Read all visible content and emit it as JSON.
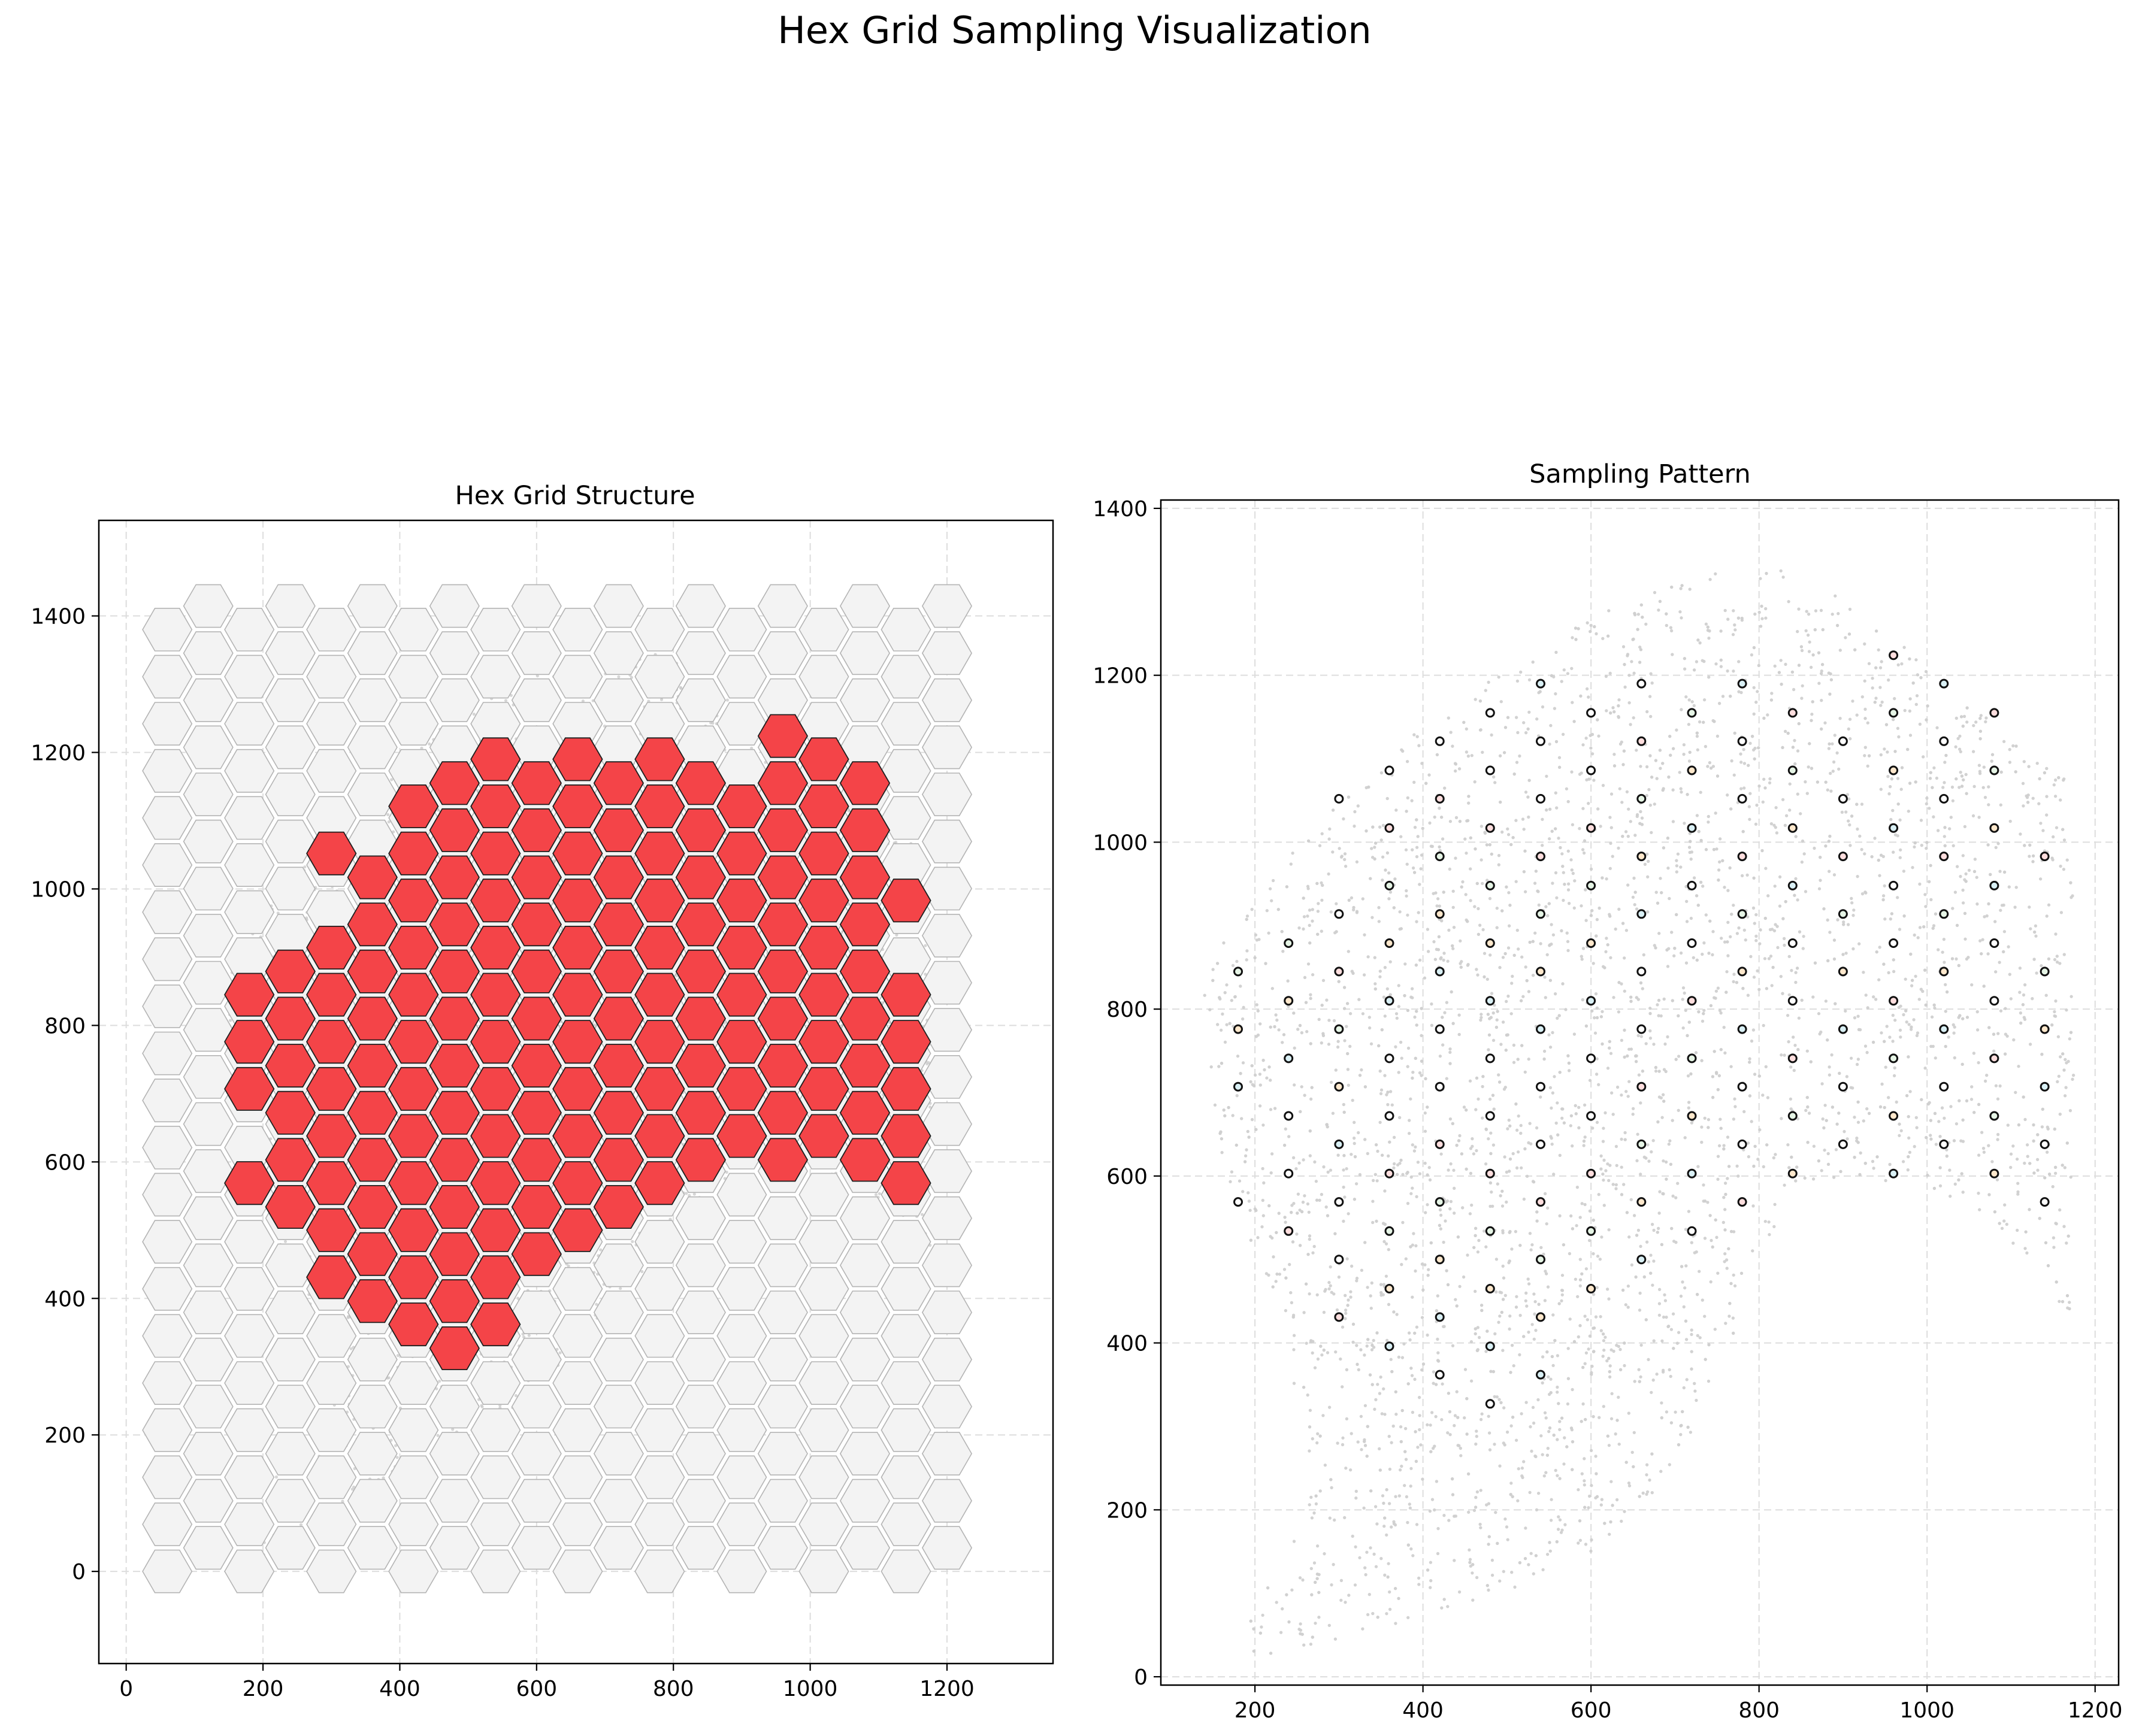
{
  "title": "Hex Grid Sampling Visualization",
  "chart_data": [
    {
      "type": "scatter",
      "title": "Hex Grid Structure",
      "xlabel": "",
      "ylabel": "",
      "xlim": [
        -40,
        1355
      ],
      "ylim": [
        -135,
        1540
      ],
      "xticks": [
        0,
        200,
        400,
        600,
        800,
        1000,
        1200
      ],
      "yticks": [
        0,
        200,
        400,
        600,
        800,
        1000,
        1200,
        1400
      ],
      "grid": true,
      "hex_grid": {
        "x_origin": 60,
        "x_spacing": 60,
        "y_origin": 0,
        "y_spacing": 69,
        "hex_radius": 36,
        "odd_column_offset": 34.5,
        "columns": 20,
        "rows": 21,
        "fill_color": "#f3f3f3",
        "edge_color": "#b4b4b4"
      },
      "selected_hexes": {
        "fill_color": "#f44448",
        "edge_color": "#1e1e1e",
        "columns": [
          {
            "x": 180,
            "y": [
              569,
              707,
              776,
              845
            ]
          },
          {
            "x": 240,
            "y": [
              534,
              603,
              672,
              741,
              810,
              879
            ]
          },
          {
            "x": 300,
            "y": [
              431,
              500,
              569,
              638,
              707,
              776,
              845,
              914,
              1052
            ]
          },
          {
            "x": 360,
            "y": [
              396,
              465,
              534,
              603,
              672,
              741,
              810,
              879,
              948,
              1017
            ]
          },
          {
            "x": 420,
            "y": [
              362,
              431,
              500,
              569,
              638,
              707,
              776,
              845,
              914,
              983,
              1052,
              1121
            ]
          },
          {
            "x": 480,
            "y": [
              327,
              396,
              465,
              534,
              603,
              672,
              741,
              810,
              879,
              948,
              1017,
              1086,
              1155
            ]
          },
          {
            "x": 540,
            "y": [
              362,
              431,
              500,
              569,
              638,
              707,
              776,
              845,
              914,
              983,
              1052,
              1121,
              1190
            ]
          },
          {
            "x": 600,
            "y": [
              465,
              534,
              603,
              672,
              741,
              810,
              879,
              948,
              1017,
              1086,
              1155
            ]
          },
          {
            "x": 660,
            "y": [
              500,
              569,
              638,
              707,
              776,
              845,
              914,
              983,
              1052,
              1121,
              1190
            ]
          },
          {
            "x": 720,
            "y": [
              534,
              603,
              672,
              741,
              810,
              879,
              948,
              1017,
              1086,
              1155
            ]
          },
          {
            "x": 780,
            "y": [
              569,
              638,
              707,
              776,
              845,
              914,
              983,
              1052,
              1121,
              1190
            ]
          },
          {
            "x": 840,
            "y": [
              603,
              672,
              741,
              810,
              879,
              948,
              1017,
              1086,
              1155
            ]
          },
          {
            "x": 900,
            "y": [
              638,
              707,
              776,
              845,
              914,
              983,
              1052,
              1121
            ]
          },
          {
            "x": 960,
            "y": [
              603,
              672,
              741,
              810,
              879,
              948,
              1017,
              1086,
              1155,
              1224
            ]
          },
          {
            "x": 1020,
            "y": [
              638,
              707,
              776,
              845,
              914,
              983,
              1052,
              1121,
              1190
            ]
          },
          {
            "x": 1080,
            "y": [
              603,
              672,
              741,
              810,
              879,
              948,
              1017,
              1086,
              1155
            ]
          },
          {
            "x": 1140,
            "y": [
              569,
              638,
              707,
              776,
              845,
              983
            ]
          }
        ]
      },
      "background_points": {
        "color": "#c8c8c8",
        "outline": [
          [
            140,
            850
          ],
          [
            180,
            950
          ],
          [
            260,
            1060
          ],
          [
            360,
            1160
          ],
          [
            480,
            1260
          ],
          [
            600,
            1320
          ],
          [
            720,
            1360
          ],
          [
            800,
            1345
          ],
          [
            880,
            1280
          ],
          [
            960,
            1200
          ],
          [
            1060,
            1120
          ],
          [
            1160,
            1070
          ],
          [
            1175,
            900
          ],
          [
            1180,
            650
          ],
          [
            1180,
            430
          ],
          [
            1150,
            500
          ],
          [
            1000,
            600
          ],
          [
            880,
            580
          ],
          [
            800,
            500
          ],
          [
            740,
            420
          ],
          [
            660,
            330
          ],
          [
            560,
            230
          ],
          [
            460,
            150
          ],
          [
            330,
            80
          ],
          [
            200,
            20
          ],
          [
            170,
            60
          ],
          [
            220,
            140
          ],
          [
            300,
            240
          ],
          [
            260,
            380
          ],
          [
            210,
            520
          ],
          [
            160,
            640
          ]
        ]
      }
    },
    {
      "type": "scatter",
      "title": "Sampling Pattern",
      "xlabel": "",
      "ylabel": "",
      "xlim": [
        88,
        1228
      ],
      "ylim": [
        -10,
        1410
      ],
      "xticks": [
        200,
        400,
        600,
        800,
        1000,
        1200
      ],
      "yticks": [
        0,
        200,
        400,
        600,
        800,
        1000,
        1200,
        1400
      ],
      "grid": true,
      "sample_marker": {
        "fill_colors": [
          "#ffffff",
          "#d9f0f5",
          "#ffe8cc",
          "#e6f5e6",
          "#ffdede",
          "#ffffff"
        ],
        "edge_color": "#111111"
      },
      "background_points": {
        "color": "#cfcfcf",
        "outline": [
          [
            140,
            820
          ],
          [
            160,
            880
          ],
          [
            220,
            960
          ],
          [
            300,
            1050
          ],
          [
            400,
            1140
          ],
          [
            500,
            1210
          ],
          [
            600,
            1270
          ],
          [
            700,
            1310
          ],
          [
            780,
            1335
          ],
          [
            820,
            1345
          ],
          [
            860,
            1320
          ],
          [
            920,
            1280
          ],
          [
            980,
            1230
          ],
          [
            1040,
            1180
          ],
          [
            1100,
            1120
          ],
          [
            1175,
            1070
          ],
          [
            1175,
            900
          ],
          [
            1175,
            700
          ],
          [
            1175,
            520
          ],
          [
            1170,
            420
          ],
          [
            1140,
            470
          ],
          [
            1060,
            560
          ],
          [
            980,
            590
          ],
          [
            900,
            600
          ],
          [
            840,
            580
          ],
          [
            790,
            480
          ],
          [
            760,
            380
          ],
          [
            720,
            280
          ],
          [
            660,
            200
          ],
          [
            600,
            150
          ],
          [
            520,
            110
          ],
          [
            440,
            80
          ],
          [
            360,
            60
          ],
          [
            280,
            40
          ],
          [
            200,
            20
          ],
          [
            190,
            60
          ],
          [
            230,
            140
          ],
          [
            270,
            240
          ],
          [
            240,
            380
          ],
          [
            200,
            500
          ],
          [
            160,
            620
          ],
          [
            145,
            720
          ]
        ]
      },
      "samples": [
        {
          "x": 180,
          "y": [
            569,
            707,
            776,
            845
          ]
        },
        {
          "x": 240,
          "y": [
            534,
            603,
            672,
            741,
            810,
            879
          ]
        },
        {
          "x": 300,
          "y": [
            431,
            500,
            569,
            638,
            707,
            776,
            845,
            914,
            1052
          ]
        },
        {
          "x": 360,
          "y": [
            396,
            465,
            534,
            603,
            672,
            741,
            810,
            879,
            948,
            1017,
            1086
          ]
        },
        {
          "x": 420,
          "y": [
            362,
            431,
            500,
            569,
            638,
            707,
            776,
            845,
            914,
            983,
            1052,
            1121
          ]
        },
        {
          "x": 480,
          "y": [
            327,
            396,
            465,
            534,
            603,
            672,
            741,
            810,
            879,
            948,
            1017,
            1086,
            1155
          ]
        },
        {
          "x": 540,
          "y": [
            362,
            431,
            500,
            569,
            638,
            707,
            776,
            845,
            914,
            983,
            1052,
            1121,
            1190
          ]
        },
        {
          "x": 600,
          "y": [
            465,
            534,
            603,
            672,
            741,
            810,
            879,
            948,
            1017,
            1086,
            1155
          ]
        },
        {
          "x": 660,
          "y": [
            500,
            569,
            638,
            707,
            776,
            845,
            914,
            983,
            1052,
            1121,
            1190
          ]
        },
        {
          "x": 720,
          "y": [
            534,
            603,
            672,
            741,
            810,
            879,
            948,
            1017,
            1086,
            1155
          ]
        },
        {
          "x": 780,
          "y": [
            569,
            638,
            707,
            776,
            845,
            914,
            983,
            1052,
            1121,
            1190
          ]
        },
        {
          "x": 840,
          "y": [
            603,
            672,
            741,
            810,
            879,
            948,
            1017,
            1086,
            1155
          ]
        },
        {
          "x": 900,
          "y": [
            638,
            707,
            776,
            845,
            914,
            983,
            1052,
            1121
          ]
        },
        {
          "x": 960,
          "y": [
            603,
            672,
            741,
            810,
            879,
            948,
            1017,
            1086,
            1155,
            1224
          ]
        },
        {
          "x": 1020,
          "y": [
            638,
            707,
            776,
            845,
            914,
            983,
            1052,
            1121,
            1190
          ]
        },
        {
          "x": 1080,
          "y": [
            603,
            672,
            741,
            810,
            879,
            948,
            1017,
            1086,
            1155
          ]
        },
        {
          "x": 1140,
          "y": [
            569,
            638,
            707,
            776,
            845,
            983
          ]
        }
      ]
    }
  ]
}
